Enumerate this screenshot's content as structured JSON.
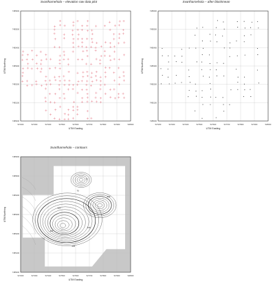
{
  "chart_data": [
    {
      "type": "scatter",
      "title": "Svartharnehola – elevation raw data plot",
      "xlabel": "UTM Easting",
      "ylabel": "UTM Northing",
      "xticks": [
        "527200",
        "527300",
        "527400",
        "527500",
        "527600",
        "527700",
        "527800",
        "527900",
        "528000"
      ],
      "yticks": [
        "7485600",
        "7485500",
        "7485400",
        "7485300",
        "7485200",
        "7485100",
        "7485000"
      ],
      "grid": true,
      "point_color": "#e06070"
    },
    {
      "type": "scatter",
      "title": "Svartharnehola – after blockmean",
      "xlabel": "UTM Easting",
      "ylabel": "UTM Northing",
      "xticks": [
        "527200",
        "527300",
        "527400",
        "527500",
        "527600",
        "527700",
        "527800",
        "527900",
        "528000"
      ],
      "yticks": [
        "7485600",
        "7485500",
        "7485400",
        "7485300",
        "7485200",
        "7485100",
        "7485000"
      ],
      "grid": true,
      "point_color": "#222222"
    },
    {
      "type": "contour",
      "title": "Svartharnehola – contours",
      "xlabel": "UTM Easting",
      "ylabel": "UTM Northing",
      "xticks": [
        "527200",
        "527300",
        "527400",
        "527500",
        "527600",
        "527700",
        "527800",
        "527900",
        "528000"
      ],
      "yticks": [
        "7485600",
        "7485500",
        "7485400",
        "7485300",
        "7485200",
        "7485100",
        "7485000"
      ],
      "grid": true,
      "contour_labels": [
        "72",
        "70",
        "215",
        "220",
        "210",
        "205",
        "200"
      ],
      "mask_color": "#c8c8c8"
    }
  ]
}
